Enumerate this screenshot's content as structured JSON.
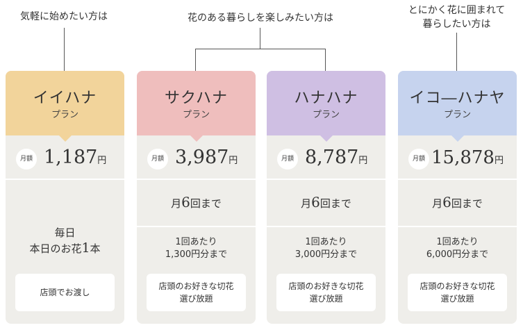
{
  "captions": {
    "casual": "気軽に始めたい方は",
    "enjoy": "花のある暮らしを楽しみたい方は",
    "surround_line1": "とにかく花に囲まれて",
    "surround_line2": "暮らしたい方は"
  },
  "colors": {
    "ii_hana": "#f2d49b",
    "saku_hana": "#efbebd",
    "hana_hana": "#cfbfe3",
    "iko_hanaya": "#c6d3ee",
    "card_bg": "#efeeea"
  },
  "plans": [
    {
      "name": "イイハナ",
      "plan_label": "プラン",
      "badge": "月額",
      "price": "1,187",
      "yen": "円",
      "daily_line1": "毎日",
      "daily_line2_pre": "本日のお花",
      "daily_num": "1",
      "daily_line2_post": "本",
      "benefit": "店頭でお渡し"
    },
    {
      "name": "サクハナ",
      "plan_label": "プラン",
      "badge": "月額",
      "price": "3,987",
      "yen": "円",
      "freq_pre": "月",
      "freq_num": "6",
      "freq_post": "回まで",
      "per_line1": "1回あたり",
      "per_line2": "1,300円分まで",
      "benefit_line1": "店頭のお好きな切花",
      "benefit_line2": "選び放題"
    },
    {
      "name": "ハナハナ",
      "plan_label": "プラン",
      "badge": "月額",
      "price": "8,787",
      "yen": "円",
      "freq_pre": "月",
      "freq_num": "6",
      "freq_post": "回まで",
      "per_line1": "1回あたり",
      "per_line2": "3,000円分まで",
      "benefit_line1": "店頭のお好きな切花",
      "benefit_line2": "選び放題"
    },
    {
      "name": "イコ―ハナヤ",
      "plan_label": "プラン",
      "badge": "月額",
      "price": "15,878",
      "yen": "円",
      "freq_pre": "月",
      "freq_num": "6",
      "freq_post": "回まで",
      "per_line1": "1回あたり",
      "per_line2": "6,000円分まで",
      "benefit_line1": "店頭のお好きな切花",
      "benefit_line2": "選び放題"
    }
  ]
}
